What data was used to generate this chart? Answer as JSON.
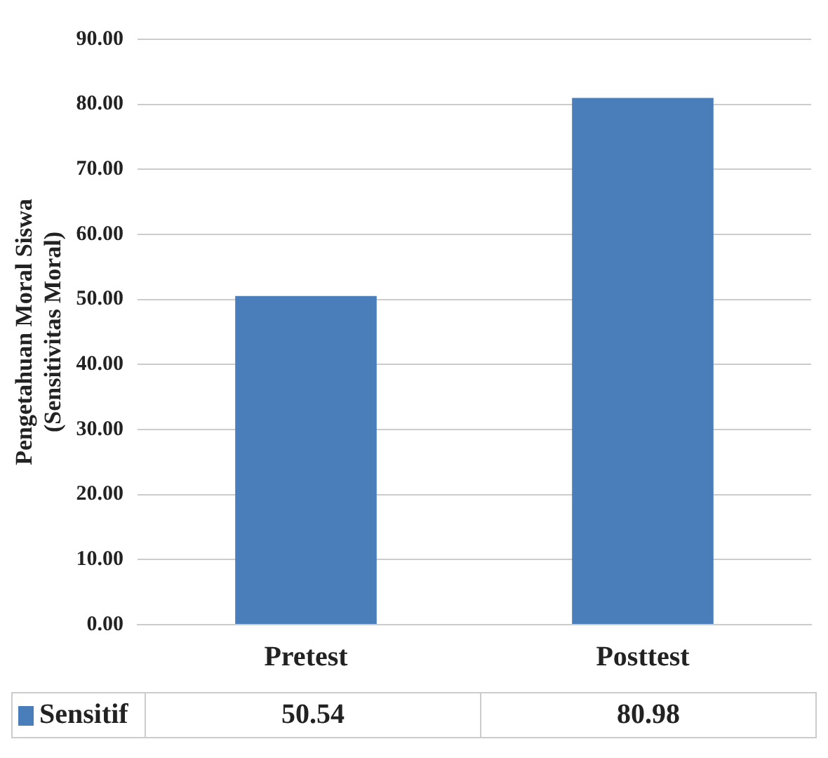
{
  "chart_data": {
    "type": "bar",
    "ylabel": "Pengetahuan Moral Siswa\n(Sensitivitas Moral)",
    "categories": [
      "Pretest",
      "Posttest"
    ],
    "series": [
      {
        "name": "Sensitif",
        "color": "#4a7ebb",
        "values": [
          50.54,
          80.98
        ]
      }
    ],
    "ylim": [
      0,
      90
    ],
    "yticks": [
      {
        "value": 0,
        "label": "0.00"
      },
      {
        "value": 10,
        "label": "10.00"
      },
      {
        "value": 20,
        "label": "20.00"
      },
      {
        "value": 30,
        "label": "30.00"
      },
      {
        "value": 40,
        "label": "40.00"
      },
      {
        "value": 50,
        "label": "50.00"
      },
      {
        "value": 60,
        "label": "60.00"
      },
      {
        "value": 70,
        "label": "70.00"
      },
      {
        "value": 80,
        "label": "80.00"
      },
      {
        "value": 90,
        "label": "90.00"
      }
    ],
    "grid": "y",
    "data_labels": true
  }
}
